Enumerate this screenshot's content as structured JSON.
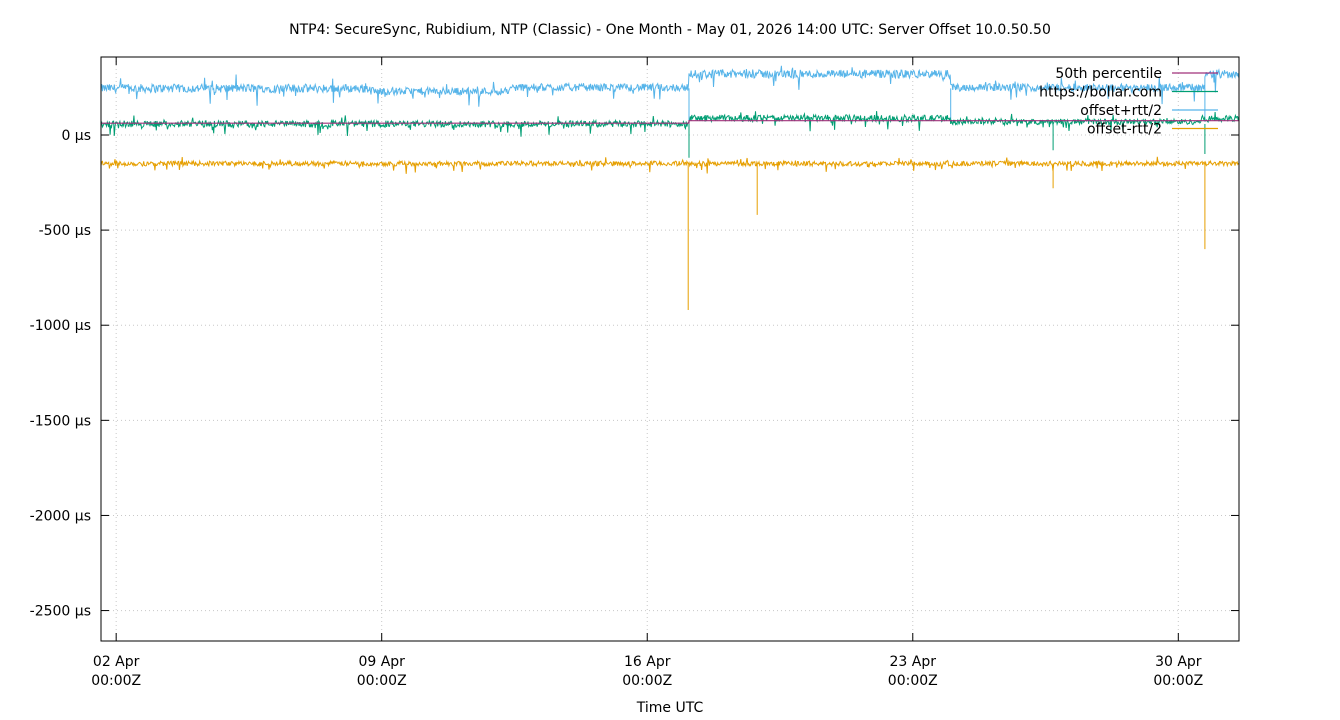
{
  "chart_data": {
    "type": "line",
    "title": "NTP4: SecureSync, Rubidium, NTP (Classic) - One Month - May 01, 2026 14:00 UTC: Server Offset 10.0.50.50",
    "xlabel": "Time UTC",
    "ylabel": "",
    "x_range_days": [
      1.6,
      31.6
    ],
    "ylim": [
      -2660,
      410
    ],
    "grid": true,
    "legend_position": "top-right",
    "x_ticks": [
      {
        "line1": "02 Apr",
        "line2": "00:00Z",
        "day": 2
      },
      {
        "line1": "09 Apr",
        "line2": "00:00Z",
        "day": 9
      },
      {
        "line1": "16 Apr",
        "line2": "00:00Z",
        "day": 16
      },
      {
        "line1": "23 Apr",
        "line2": "00:00Z",
        "day": 23
      },
      {
        "line1": "30 Apr",
        "line2": "00:00Z",
        "day": 30
      }
    ],
    "y_ticks": [
      {
        "label": "0 µs",
        "value": 0
      },
      {
        "label": "-500 µs",
        "value": -500
      },
      {
        "label": "-1000 µs",
        "value": -1000
      },
      {
        "label": "-1500 µs",
        "value": -1500
      },
      {
        "label": "-2000 µs",
        "value": -2000
      },
      {
        "label": "-2500 µs",
        "value": -2500
      }
    ],
    "series": [
      {
        "name": "50th percentile",
        "color": "#a0307a",
        "style": "step",
        "segments": [
          {
            "from": 1.6,
            "to": 17.1,
            "value": 62
          },
          {
            "from": 17.1,
            "to": 31.6,
            "value": 75
          }
        ]
      },
      {
        "name": "https://bollar.com",
        "color": "#009e73",
        "style": "noisy",
        "segments": [
          {
            "from": 1.6,
            "to": 17.1,
            "value": 58,
            "noise": 35
          },
          {
            "from": 17.1,
            "to": 24.0,
            "value": 88,
            "noise": 35
          },
          {
            "from": 24.0,
            "to": 30.6,
            "value": 70,
            "noise": 30
          },
          {
            "from": 30.6,
            "to": 31.6,
            "value": 85,
            "noise": 35
          }
        ],
        "spikes": [
          {
            "day": 17.1,
            "value": -120
          },
          {
            "day": 26.7,
            "value": -80
          },
          {
            "day": 30.7,
            "value": -100
          }
        ]
      },
      {
        "name": "offset+rtt/2",
        "color": "#56b4e9",
        "style": "noisy",
        "segments": [
          {
            "from": 1.6,
            "to": 8.7,
            "value": 245,
            "noise": 45
          },
          {
            "from": 8.7,
            "to": 12.4,
            "value": 230,
            "noise": 40
          },
          {
            "from": 12.4,
            "to": 17.1,
            "value": 250,
            "noise": 40
          },
          {
            "from": 17.1,
            "to": 24.0,
            "value": 320,
            "noise": 45
          },
          {
            "from": 24.0,
            "to": 30.7,
            "value": 250,
            "noise": 40
          },
          {
            "from": 30.7,
            "to": 31.6,
            "value": 320,
            "noise": 45
          }
        ],
        "spikes": [
          {
            "day": 17.1,
            "value": 60
          },
          {
            "day": 24.0,
            "value": 80
          },
          {
            "day": 30.7,
            "value": 70
          }
        ]
      },
      {
        "name": "offset-rtt/2",
        "color": "#e69f00",
        "style": "noisy",
        "segments": [
          {
            "from": 1.6,
            "to": 31.6,
            "value": -150,
            "noise": 25
          }
        ],
        "spikes": [
          {
            "day": 17.08,
            "value": -920
          },
          {
            "day": 18.9,
            "value": -420
          },
          {
            "day": 26.7,
            "value": -280
          },
          {
            "day": 30.7,
            "value": -600
          }
        ]
      }
    ]
  }
}
